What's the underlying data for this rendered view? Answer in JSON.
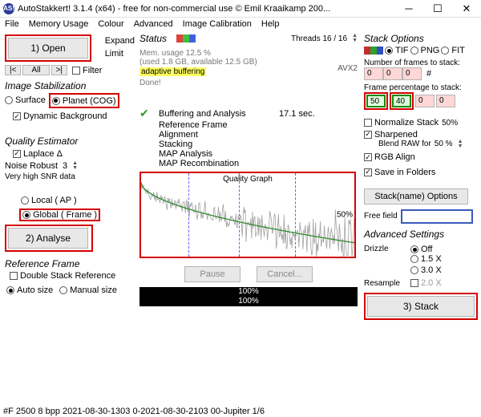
{
  "window": {
    "title": "AutoStakkert! 3.1.4 (x64) - free for non-commercial use © Emil Kraaikamp 200...",
    "icon_text": "AS!"
  },
  "menu": {
    "file": "File",
    "memory": "Memory Usage",
    "colour": "Colour",
    "advanced": "Advanced",
    "calibration": "Image Calibration",
    "help": "Help"
  },
  "left": {
    "open_btn": "1) Open",
    "expand": "Expand",
    "limit": "Limit",
    "nav_first": "|<",
    "nav_all": "All",
    "nav_last": ">|",
    "filter": "Filter",
    "stabilization_header": "Image Stabilization",
    "surface": "Surface",
    "planet": "Planet (COG)",
    "dynamic_bg": "Dynamic Background",
    "quality_header": "Quality Estimator",
    "laplace": "Laplace Δ",
    "noise_robust_label": "Noise Robust",
    "noise_robust_val": "3",
    "snr_text": "Very high SNR data",
    "local": "Local    ( AP )",
    "global": "Global   ( Frame )",
    "analyse_btn": "2) Analyse",
    "refframe_header": "Reference Frame",
    "double_stack": "Double Stack Reference",
    "auto_size": "Auto size",
    "manual_size": "Manual size"
  },
  "middle": {
    "status_label": "Status",
    "threads": "Threads 16 / 16",
    "avx2": "AVX2",
    "mem_usage": "Mem. usage 12.5 %",
    "mem_detail": "(used 1.8 GB, available 12.5 GB)",
    "adaptive": "adaptive buffering",
    "done": "Done!",
    "steps": {
      "buffering": "Buffering and Analysis",
      "buffering_time": "17.1 sec.",
      "ref": "Reference Frame",
      "align": "Alignment",
      "stacking": "Stacking",
      "map_analysis": "MAP Analysis",
      "map_recomb": "MAP Recombination"
    },
    "graph_label": "Quality Graph",
    "graph_50": "50%",
    "pause": "Pause",
    "cancel": "Cancel...",
    "progress1": "100%",
    "progress2": "100%"
  },
  "right": {
    "header": "Stack Options",
    "tif": "TIF",
    "png": "PNG",
    "fit": "FIT",
    "num_frames_label": "Number of frames to stack:",
    "nf1": "0",
    "nf2": "0",
    "nf3": "0",
    "nf_hash": "#",
    "pct_label": "Frame percentage to stack:",
    "p1": "50",
    "p2": "40",
    "p3": "0",
    "p4": "0",
    "normalize": "Normalize Stack",
    "normalize_pct": "50%",
    "sharpened": "Sharpened",
    "blend_raw": "Blend RAW for",
    "blend_pct": "50 %",
    "rgb_align": "RGB Align",
    "save_folders": "Save in Folders",
    "stackname_btn": "Stack(name) Options",
    "freefield_label": "Free field",
    "adv_header": "Advanced Settings",
    "drizzle": "Drizzle",
    "d_off": "Off",
    "d_15": "1.5 X",
    "d_30": "3.0 X",
    "resample": "Resample",
    "r_20": "2.0 X",
    "stack_btn": "3) Stack"
  },
  "statusbar": "#F 2500  8 bpp 2021-08-30-1303  0-2021-08-30-2103  00-Jupiter 1/6",
  "colors": {
    "red": "#d40000",
    "highlight": "#ffff60"
  }
}
